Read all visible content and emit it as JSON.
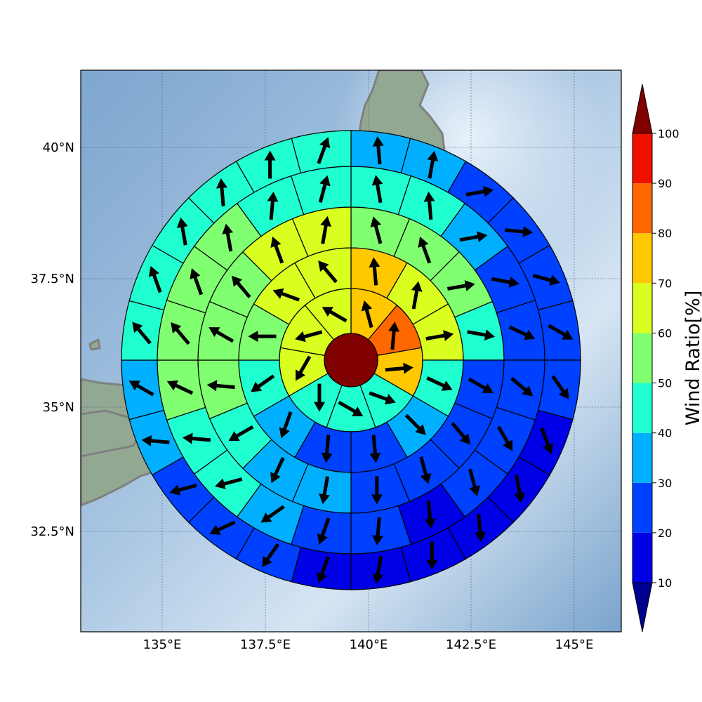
{
  "map": {
    "lon_ticks": [
      "135°E",
      "137.5°E",
      "140°E",
      "142.5°E",
      "145°E"
    ],
    "lat_ticks": [
      "32.5°N",
      "35°N",
      "37.5°N",
      "40°N"
    ],
    "land_color": "#8aa38a",
    "coast_color": "#808080",
    "sea_color": "#8fb3d6"
  },
  "colorbar": {
    "label": "Wind Ratio[%]",
    "ticks": [
      "10",
      "20",
      "30",
      "40",
      "50",
      "60",
      "70",
      "80",
      "90",
      "100"
    ],
    "colors": [
      "#0000e6",
      "#0040ff",
      "#00b0ff",
      "#20ffd0",
      "#80ff70",
      "#d8ff20",
      "#ffc800",
      "#ff6800",
      "#f01000"
    ],
    "under_color": "#000090",
    "over_color": "#800000"
  },
  "chart_data": {
    "type": "polar-sector-map",
    "center_color": "#800000",
    "rings": [
      {
        "ring": 1,
        "ratio": [
          70,
          80,
          70,
          40,
          40,
          40,
          60,
          60,
          60
        ],
        "wind_dir_deg": [
          345,
          5,
          85,
          110,
          120,
          180,
          210,
          255,
          300
        ]
      },
      {
        "ring": 2,
        "ratio": [
          70,
          60,
          60,
          40,
          30,
          20,
          20,
          30,
          40,
          50,
          60,
          60
        ],
        "wind_dir_deg": [
          355,
          10,
          80,
          115,
          135,
          175,
          185,
          200,
          235,
          270,
          290,
          320
        ]
      },
      {
        "ring": 3,
        "ratio": [
          50,
          50,
          50,
          40,
          20,
          20,
          20,
          20,
          30,
          30,
          40,
          50,
          50,
          50,
          60,
          60
        ],
        "wind_dir_deg": [
          345,
          340,
          80,
          100,
          120,
          140,
          165,
          180,
          190,
          205,
          240,
          275,
          300,
          320,
          340,
          10
        ]
      },
      {
        "ring": 4,
        "ratio": [
          40,
          40,
          30,
          20,
          20,
          20,
          20,
          20,
          10,
          20,
          20,
          30,
          40,
          40,
          50,
          50,
          50,
          50,
          40,
          40
        ],
        "wind_dir_deg": [
          350,
          355,
          80,
          100,
          115,
          130,
          150,
          165,
          175,
          185,
          200,
          235,
          255,
          275,
          295,
          320,
          340,
          350,
          5,
          15
        ]
      },
      {
        "ring": 5,
        "ratio": [
          30,
          30,
          20,
          20,
          20,
          20,
          20,
          10,
          10,
          10,
          10,
          10,
          10,
          20,
          20,
          20,
          30,
          30,
          40,
          40,
          40,
          40,
          40,
          40
        ],
        "wind_dir_deg": [
          355,
          10,
          80,
          95,
          105,
          120,
          145,
          160,
          170,
          175,
          180,
          190,
          200,
          215,
          245,
          255,
          275,
          300,
          320,
          340,
          350,
          355,
          360,
          20
        ]
      }
    ]
  }
}
